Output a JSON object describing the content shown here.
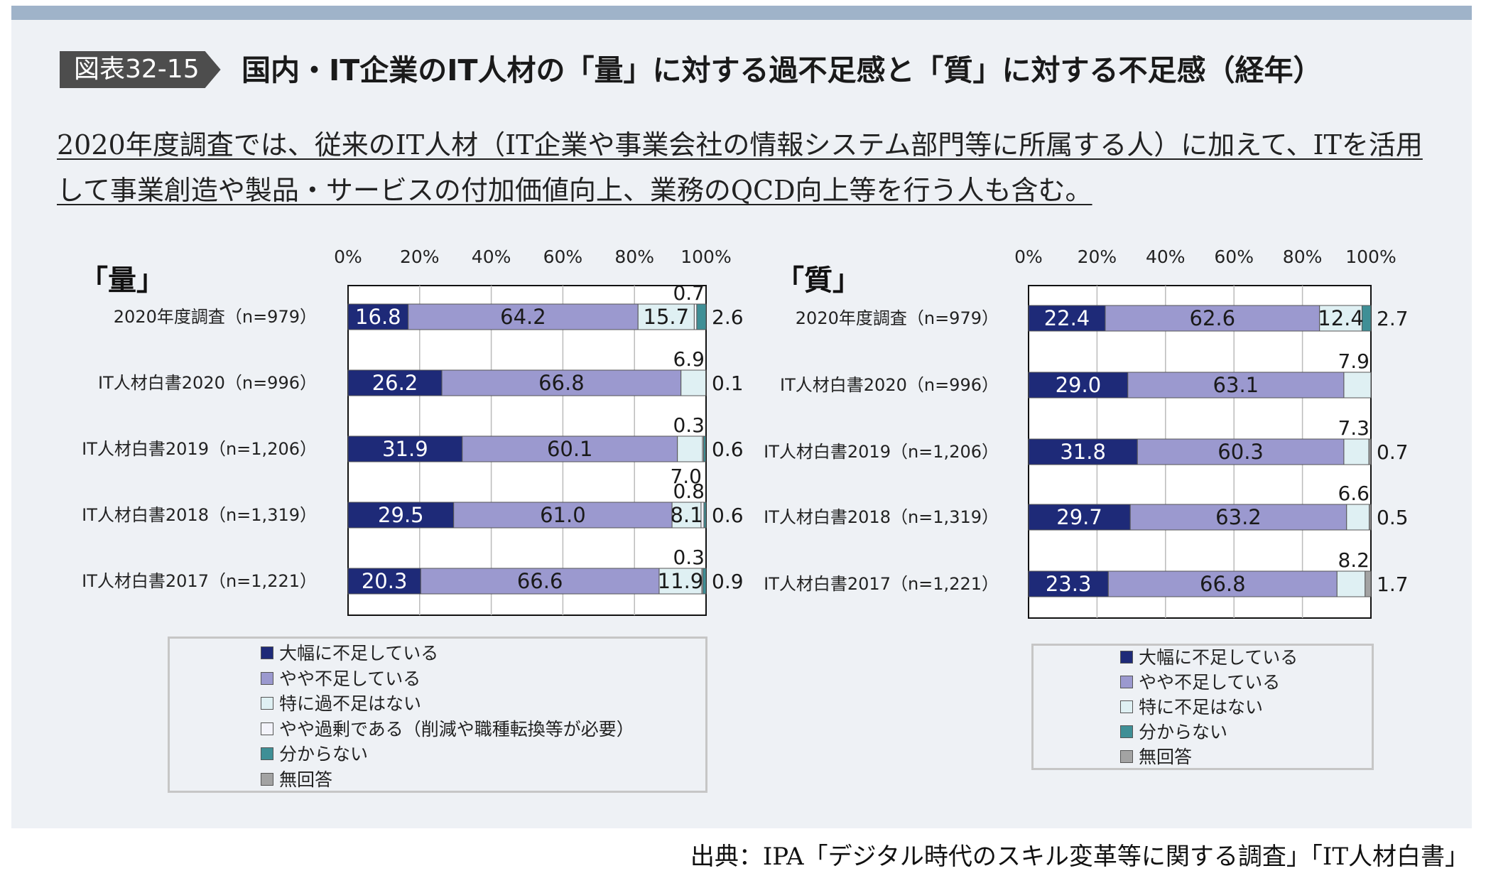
{
  "figure": {
    "tag": "図表32-15",
    "title": "国内・IT企業のIT人材の「量」に対する過不足感と「質」に対する不足感（経年）",
    "note_line1": "2020年度調査では、従来のIT人材（IT企業や事業会社の情報システム部門等に所属する人）に加えて、ITを活用",
    "note_line2": "して事業創造や製品・サービスの付加価値向上、業務のQCD向上等を行う人も含む。",
    "source": "出典：IPA「デジタル時代のスキル変革等に関する調査」「IT人材白書」"
  },
  "chart_data": [
    {
      "type": "bar",
      "orientation": "horizontal",
      "stacked": true,
      "title": "「量」",
      "x_ticks": [
        "0%",
        "20%",
        "40%",
        "60%",
        "80%",
        "100%"
      ],
      "xlim": [
        0,
        100
      ],
      "categories": [
        "2020年度調査（n=979）",
        "IT人材白書2020（n=996）",
        "IT人材白書2019（n=1,206）",
        "IT人材白書2018（n=1,319）",
        "IT人材白書2017（n=1,221）"
      ],
      "series": [
        {
          "name": "大幅に不足している",
          "color": "#1e2a78",
          "values": [
            16.8,
            26.2,
            31.9,
            29.5,
            20.3
          ]
        },
        {
          "name": "やや不足している",
          "color": "#9b99cf",
          "values": [
            64.2,
            66.8,
            60.1,
            61.0,
            66.6
          ]
        },
        {
          "name": "特に過不足はない",
          "color": "#dff0f3",
          "values": [
            15.7,
            6.9,
            7.0,
            8.1,
            11.9
          ]
        },
        {
          "name": "やや過剰である（削減や職種転換等が必要）",
          "color": "#f3f3fb",
          "values": [
            0.7,
            0.0,
            0.3,
            0.8,
            0.3
          ]
        },
        {
          "name": "分からない",
          "color": "#3f8f96",
          "values": [
            2.6,
            0.1,
            0.6,
            0.6,
            0.9
          ]
        },
        {
          "name": "無回答",
          "color": "#a3a3a3",
          "values": [
            0,
            0,
            0,
            0,
            0
          ]
        }
      ],
      "labels": [
        {
          "above": "0.7",
          "right": "2.6",
          "inside": [
            "16.8",
            "64.2",
            "15.7"
          ]
        },
        {
          "above": "6.9",
          "right": "0.1",
          "inside": [
            "26.2",
            "66.8",
            ""
          ]
        },
        {
          "above": "0.3",
          "right": "0.6",
          "inside": [
            "31.9",
            "60.1",
            ""
          ],
          "below": "7.0"
        },
        {
          "above": "0.8",
          "right": "0.6",
          "inside": [
            "29.5",
            "61.0",
            "8.1"
          ]
        },
        {
          "above": "0.3",
          "right": "0.9",
          "inside": [
            "20.3",
            "66.6",
            "11.9"
          ]
        }
      ],
      "legend": [
        "大幅に不足している",
        "やや不足している",
        "特に過不足はない",
        "やや過剰である（削減や職種転換等が必要）",
        "分からない",
        "無回答"
      ]
    },
    {
      "type": "bar",
      "orientation": "horizontal",
      "stacked": true,
      "title": "「質」",
      "x_ticks": [
        "0%",
        "20%",
        "40%",
        "60%",
        "80%",
        "100%"
      ],
      "xlim": [
        0,
        100
      ],
      "categories": [
        "2020年度調査（n=979）",
        "IT人材白書2020（n=996）",
        "IT人材白書2019（n=1,206）",
        "IT人材白書2018（n=1,319）",
        "IT人材白書2017（n=1,221）"
      ],
      "series": [
        {
          "name": "大幅に不足している",
          "color": "#1e2a78",
          "values": [
            22.4,
            29.0,
            31.8,
            29.7,
            23.3
          ]
        },
        {
          "name": "やや不足している",
          "color": "#9b99cf",
          "values": [
            62.6,
            63.1,
            60.3,
            63.2,
            66.8
          ]
        },
        {
          "name": "特に不足はない",
          "color": "#dff0f3",
          "values": [
            12.4,
            7.9,
            7.3,
            6.6,
            8.2
          ]
        },
        {
          "name": "分からない",
          "color": "#3f8f96",
          "values": [
            2.7,
            0.0,
            0.0,
            0.0,
            0.0
          ]
        },
        {
          "name": "無回答",
          "color": "#a3a3a3",
          "values": [
            0.0,
            0.0,
            0.7,
            0.5,
            1.7
          ]
        }
      ],
      "labels": [
        {
          "above": "",
          "right": "2.7",
          "inside": [
            "22.4",
            "62.6",
            "12.4"
          ]
        },
        {
          "above": "7.9",
          "right": "",
          "inside": [
            "29.0",
            "63.1",
            ""
          ]
        },
        {
          "above": "7.3",
          "right": "0.7",
          "inside": [
            "31.8",
            "60.3",
            ""
          ]
        },
        {
          "above": "6.6",
          "right": "0.5",
          "inside": [
            "29.7",
            "63.2",
            ""
          ]
        },
        {
          "above": "8.2",
          "right": "1.7",
          "inside": [
            "23.3",
            "66.8",
            ""
          ]
        }
      ],
      "legend": [
        "大幅に不足している",
        "やや不足している",
        "特に不足はない",
        "分からない",
        "無回答"
      ]
    }
  ]
}
